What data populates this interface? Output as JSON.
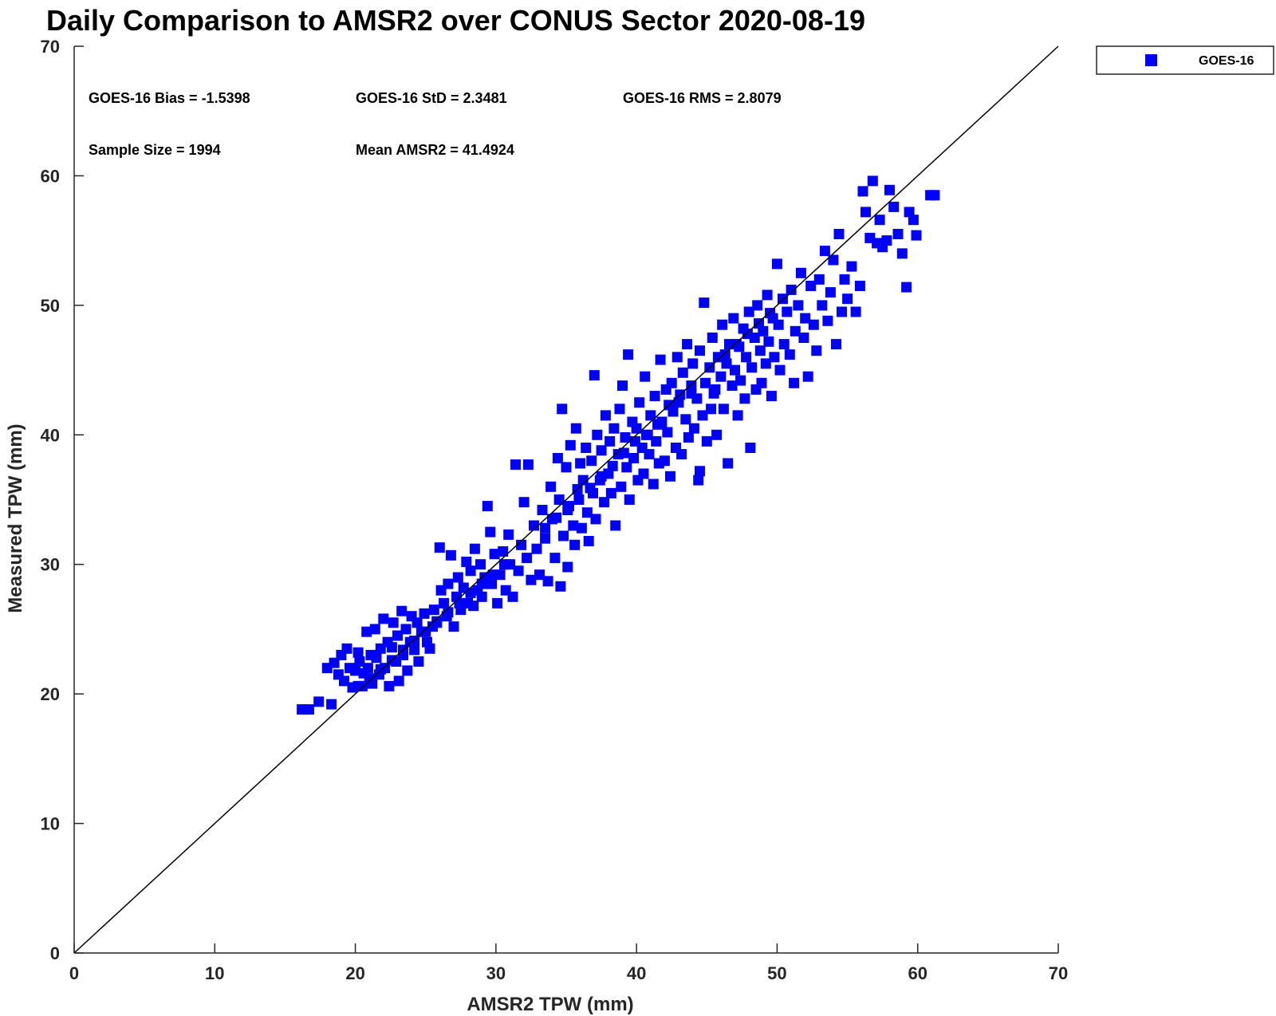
{
  "chart_data": {
    "type": "scatter",
    "title": "Daily Comparison to AMSR2 over CONUS Sector 2020-08-19",
    "xlabel": "AMSR2 TPW (mm)",
    "ylabel": "Measured TPW (mm)",
    "xlim": [
      0,
      70
    ],
    "ylim": [
      0,
      70
    ],
    "xticks": [
      0,
      10,
      20,
      30,
      40,
      50,
      60,
      70
    ],
    "yticks": [
      0,
      10,
      20,
      30,
      40,
      50,
      60,
      70
    ],
    "grid": false,
    "legend_position": "outside-top-right",
    "reference_line": {
      "from": [
        0,
        0
      ],
      "to": [
        70,
        70
      ],
      "color": "#000000"
    },
    "stats": [
      {
        "label": "GOES-16 Bias = -1.5398"
      },
      {
        "label": "GOES-16 StD = 2.3481"
      },
      {
        "label": "GOES-16 RMS = 2.8079"
      },
      {
        "label": "Sample Size = 1994"
      },
      {
        "label": "Mean AMSR2 = 41.4924"
      }
    ],
    "series": [
      {
        "name": "GOES-16",
        "color": "#0000ff",
        "marker": "square",
        "points": [
          [
            16.2,
            18.8
          ],
          [
            16.7,
            18.8
          ],
          [
            17.4,
            19.4
          ],
          [
            18.3,
            19.2
          ],
          [
            18.0,
            22.0
          ],
          [
            18.5,
            22.4
          ],
          [
            18.8,
            21.5
          ],
          [
            19.0,
            23.0
          ],
          [
            19.2,
            21.0
          ],
          [
            19.4,
            23.5
          ],
          [
            19.6,
            22.0
          ],
          [
            19.8,
            20.5
          ],
          [
            20.0,
            21.8
          ],
          [
            20.2,
            23.2
          ],
          [
            20.3,
            22.5
          ],
          [
            20.5,
            20.6
          ],
          [
            20.6,
            21.6
          ],
          [
            20.8,
            24.8
          ],
          [
            20.9,
            22.0
          ],
          [
            21.1,
            23.0
          ],
          [
            21.2,
            20.8
          ],
          [
            21.4,
            25.0
          ],
          [
            21.5,
            22.8
          ],
          [
            21.7,
            21.5
          ],
          [
            21.8,
            23.5
          ],
          [
            22.0,
            25.8
          ],
          [
            22.1,
            22.0
          ],
          [
            22.3,
            24.0
          ],
          [
            22.4,
            20.6
          ],
          [
            22.6,
            23.6
          ],
          [
            22.7,
            25.5
          ],
          [
            22.9,
            22.5
          ],
          [
            23.0,
            24.5
          ],
          [
            23.1,
            21.0
          ],
          [
            23.3,
            26.4
          ],
          [
            23.4,
            23.0
          ],
          [
            23.6,
            25.0
          ],
          [
            23.7,
            21.8
          ],
          [
            23.9,
            24.0
          ],
          [
            24.0,
            26.0
          ],
          [
            24.2,
            23.4
          ],
          [
            24.4,
            25.5
          ],
          [
            24.5,
            22.5
          ],
          [
            24.7,
            24.8
          ],
          [
            24.9,
            26.2
          ],
          [
            25.1,
            24.0
          ],
          [
            25.3,
            23.5
          ],
          [
            25.5,
            25.2
          ],
          [
            25.6,
            26.5
          ],
          [
            25.8,
            25.6
          ],
          [
            26.0,
            31.3
          ],
          [
            26.1,
            28.0
          ],
          [
            26.3,
            27.0
          ],
          [
            26.5,
            26.0
          ],
          [
            26.6,
            28.5
          ],
          [
            26.8,
            30.7
          ],
          [
            27.0,
            25.2
          ],
          [
            27.2,
            27.5
          ],
          [
            27.3,
            29.0
          ],
          [
            27.5,
            26.5
          ],
          [
            27.7,
            28.2
          ],
          [
            27.9,
            30.2
          ],
          [
            28.0,
            27.0
          ],
          [
            28.2,
            29.5
          ],
          [
            28.4,
            26.8
          ],
          [
            28.5,
            31.2
          ],
          [
            28.7,
            28.0
          ],
          [
            28.9,
            30.0
          ],
          [
            29.0,
            27.5
          ],
          [
            29.2,
            29.0
          ],
          [
            29.4,
            34.5
          ],
          [
            29.6,
            32.5
          ],
          [
            29.7,
            28.5
          ],
          [
            29.9,
            30.8
          ],
          [
            30.1,
            27.0
          ],
          [
            30.3,
            29.2
          ],
          [
            30.5,
            31.0
          ],
          [
            30.7,
            28.0
          ],
          [
            30.9,
            32.3
          ],
          [
            31.0,
            30.0
          ],
          [
            31.2,
            27.5
          ],
          [
            31.4,
            37.7
          ],
          [
            31.6,
            29.5
          ],
          [
            31.8,
            31.5
          ],
          [
            32.0,
            34.8
          ],
          [
            32.2,
            30.5
          ],
          [
            32.3,
            37.7
          ],
          [
            32.5,
            28.8
          ],
          [
            32.7,
            33.0
          ],
          [
            32.9,
            31.2
          ],
          [
            33.1,
            29.2
          ],
          [
            33.3,
            34.2
          ],
          [
            33.5,
            32.0
          ],
          [
            33.7,
            28.7
          ],
          [
            33.9,
            36.0
          ],
          [
            34.0,
            33.5
          ],
          [
            34.2,
            30.5
          ],
          [
            34.4,
            38.2
          ],
          [
            34.5,
            35.0
          ],
          [
            34.6,
            28.3
          ],
          [
            34.7,
            42.0
          ],
          [
            34.8,
            32.2
          ],
          [
            35.0,
            37.5
          ],
          [
            35.1,
            29.8
          ],
          [
            35.2,
            34.5
          ],
          [
            35.3,
            39.2
          ],
          [
            35.5,
            33.0
          ],
          [
            35.6,
            31.5
          ],
          [
            35.7,
            40.5
          ],
          [
            35.8,
            35.8
          ],
          [
            36.0,
            37.8
          ],
          [
            36.1,
            32.8
          ],
          [
            36.2,
            36.5
          ],
          [
            36.4,
            39.0
          ],
          [
            36.5,
            34.0
          ],
          [
            36.6,
            31.8
          ],
          [
            36.8,
            38.0
          ],
          [
            36.9,
            35.5
          ],
          [
            37.0,
            44.6
          ],
          [
            37.1,
            33.5
          ],
          [
            37.2,
            40.0
          ],
          [
            37.4,
            36.5
          ],
          [
            37.5,
            38.8
          ],
          [
            37.7,
            34.8
          ],
          [
            37.8,
            41.5
          ],
          [
            38.0,
            37.0
          ],
          [
            38.1,
            39.5
          ],
          [
            38.2,
            35.5
          ],
          [
            38.4,
            40.5
          ],
          [
            38.5,
            33.0
          ],
          [
            38.7,
            38.5
          ],
          [
            38.8,
            42.0
          ],
          [
            38.9,
            36.0
          ],
          [
            39.0,
            43.8
          ],
          [
            39.2,
            39.8
          ],
          [
            39.3,
            37.5
          ],
          [
            39.4,
            46.2
          ],
          [
            39.5,
            35.0
          ],
          [
            39.7,
            41.0
          ],
          [
            39.8,
            38.2
          ],
          [
            40.0,
            40.5
          ],
          [
            40.1,
            36.5
          ],
          [
            40.2,
            42.5
          ],
          [
            40.4,
            39.0
          ],
          [
            40.5,
            37.0
          ],
          [
            40.6,
            44.5
          ],
          [
            40.8,
            40.0
          ],
          [
            40.9,
            38.5
          ],
          [
            41.0,
            41.5
          ],
          [
            41.2,
            36.2
          ],
          [
            41.3,
            43.0
          ],
          [
            41.4,
            39.5
          ],
          [
            41.6,
            37.8
          ],
          [
            41.7,
            45.8
          ],
          [
            41.8,
            41.0
          ],
          [
            42.0,
            38.0
          ],
          [
            42.1,
            43.5
          ],
          [
            42.2,
            40.2
          ],
          [
            42.4,
            36.8
          ],
          [
            42.5,
            44.0
          ],
          [
            42.6,
            41.8
          ],
          [
            42.8,
            39.0
          ],
          [
            42.9,
            46.0
          ],
          [
            43.0,
            42.5
          ],
          [
            43.2,
            38.5
          ],
          [
            43.3,
            44.8
          ],
          [
            43.5,
            41.2
          ],
          [
            43.6,
            47.0
          ],
          [
            43.7,
            39.8
          ],
          [
            43.9,
            43.2
          ],
          [
            44.0,
            45.5
          ],
          [
            44.1,
            40.5
          ],
          [
            44.3,
            42.8
          ],
          [
            44.4,
            36.5
          ],
          [
            44.5,
            46.5
          ],
          [
            44.7,
            41.5
          ],
          [
            44.8,
            50.2
          ],
          [
            44.9,
            44.0
          ],
          [
            45.0,
            39.5
          ],
          [
            45.2,
            45.2
          ],
          [
            45.3,
            42.0
          ],
          [
            45.4,
            47.5
          ],
          [
            45.6,
            43.5
          ],
          [
            45.7,
            40.0
          ],
          [
            45.8,
            46.0
          ],
          [
            46.0,
            44.5
          ],
          [
            46.1,
            48.5
          ],
          [
            46.2,
            42.0
          ],
          [
            46.4,
            45.5
          ],
          [
            46.5,
            37.8
          ],
          [
            46.6,
            47.0
          ],
          [
            46.8,
            43.8
          ],
          [
            46.9,
            49.0
          ],
          [
            47.0,
            45.0
          ],
          [
            47.2,
            41.5
          ],
          [
            47.3,
            46.8
          ],
          [
            47.4,
            44.2
          ],
          [
            47.6,
            48.2
          ],
          [
            47.7,
            42.8
          ],
          [
            47.8,
            46.0
          ],
          [
            48.0,
            49.5
          ],
          [
            48.1,
            39.0
          ],
          [
            48.2,
            45.2
          ],
          [
            48.4,
            47.5
          ],
          [
            48.5,
            43.5
          ],
          [
            48.6,
            50.0
          ],
          [
            48.8,
            46.5
          ],
          [
            48.9,
            44.0
          ],
          [
            49.0,
            48.0
          ],
          [
            49.2,
            45.5
          ],
          [
            49.3,
            50.8
          ],
          [
            49.4,
            47.2
          ],
          [
            49.6,
            43.0
          ],
          [
            49.7,
            49.0
          ],
          [
            49.8,
            46.0
          ],
          [
            50.0,
            53.2
          ],
          [
            50.1,
            48.5
          ],
          [
            50.2,
            45.0
          ],
          [
            50.4,
            50.5
          ],
          [
            50.5,
            47.0
          ],
          [
            50.7,
            49.5
          ],
          [
            50.9,
            46.2
          ],
          [
            51.0,
            51.2
          ],
          [
            51.2,
            44.0
          ],
          [
            51.3,
            48.0
          ],
          [
            51.5,
            50.0
          ],
          [
            51.7,
            52.5
          ],
          [
            51.9,
            47.5
          ],
          [
            52.0,
            49.0
          ],
          [
            52.2,
            44.5
          ],
          [
            52.4,
            51.5
          ],
          [
            52.6,
            48.5
          ],
          [
            52.8,
            46.5
          ],
          [
            53.0,
            52.0
          ],
          [
            53.2,
            50.0
          ],
          [
            53.4,
            54.2
          ],
          [
            53.6,
            48.8
          ],
          [
            53.8,
            51.0
          ],
          [
            54.0,
            53.5
          ],
          [
            54.2,
            47.0
          ],
          [
            54.4,
            55.5
          ],
          [
            54.6,
            49.5
          ],
          [
            54.8,
            52.0
          ],
          [
            55.0,
            50.5
          ],
          [
            55.3,
            53.0
          ],
          [
            55.6,
            49.5
          ],
          [
            55.9,
            51.5
          ],
          [
            56.1,
            58.8
          ],
          [
            56.3,
            57.2
          ],
          [
            56.6,
            55.2
          ],
          [
            56.8,
            59.6
          ],
          [
            57.1,
            54.8
          ],
          [
            57.3,
            56.6
          ],
          [
            57.5,
            54.5
          ],
          [
            57.8,
            55.0
          ],
          [
            58.0,
            58.9
          ],
          [
            58.3,
            57.6
          ],
          [
            58.6,
            55.5
          ],
          [
            58.9,
            54.0
          ],
          [
            59.2,
            51.4
          ],
          [
            59.4,
            57.2
          ],
          [
            59.7,
            56.6
          ],
          [
            59.9,
            55.4
          ],
          [
            60.9,
            58.5
          ],
          [
            61.2,
            58.5
          ],
          [
            44.5,
            37.2
          ],
          [
            45.5,
            43.2
          ],
          [
            46.3,
            46.2
          ],
          [
            47.1,
            47.0
          ],
          [
            47.9,
            47.8
          ],
          [
            48.7,
            48.6
          ],
          [
            49.5,
            49.4
          ],
          [
            42.3,
            42.3
          ],
          [
            43.1,
            43.1
          ],
          [
            43.9,
            43.8
          ],
          [
            41.5,
            40.8
          ],
          [
            40.7,
            40.0
          ],
          [
            39.9,
            39.5
          ],
          [
            39.1,
            38.6
          ],
          [
            38.3,
            37.6
          ],
          [
            37.5,
            36.8
          ],
          [
            36.7,
            35.9
          ],
          [
            35.9,
            35.0
          ],
          [
            35.1,
            34.2
          ],
          [
            34.3,
            33.6
          ],
          [
            33.5,
            32.8
          ],
          [
            30.6,
            30.0
          ],
          [
            29.8,
            29.2
          ],
          [
            29.0,
            28.5
          ],
          [
            28.2,
            27.8
          ],
          [
            27.4,
            27.0
          ],
          [
            26.6,
            26.3
          ],
          [
            25.8,
            25.5
          ],
          [
            25.0,
            24.8
          ],
          [
            24.2,
            24.1
          ],
          [
            23.4,
            23.4
          ],
          [
            22.6,
            22.6
          ],
          [
            21.8,
            21.9
          ],
          [
            21.0,
            21.2
          ],
          [
            20.2,
            20.6
          ]
        ]
      }
    ]
  }
}
